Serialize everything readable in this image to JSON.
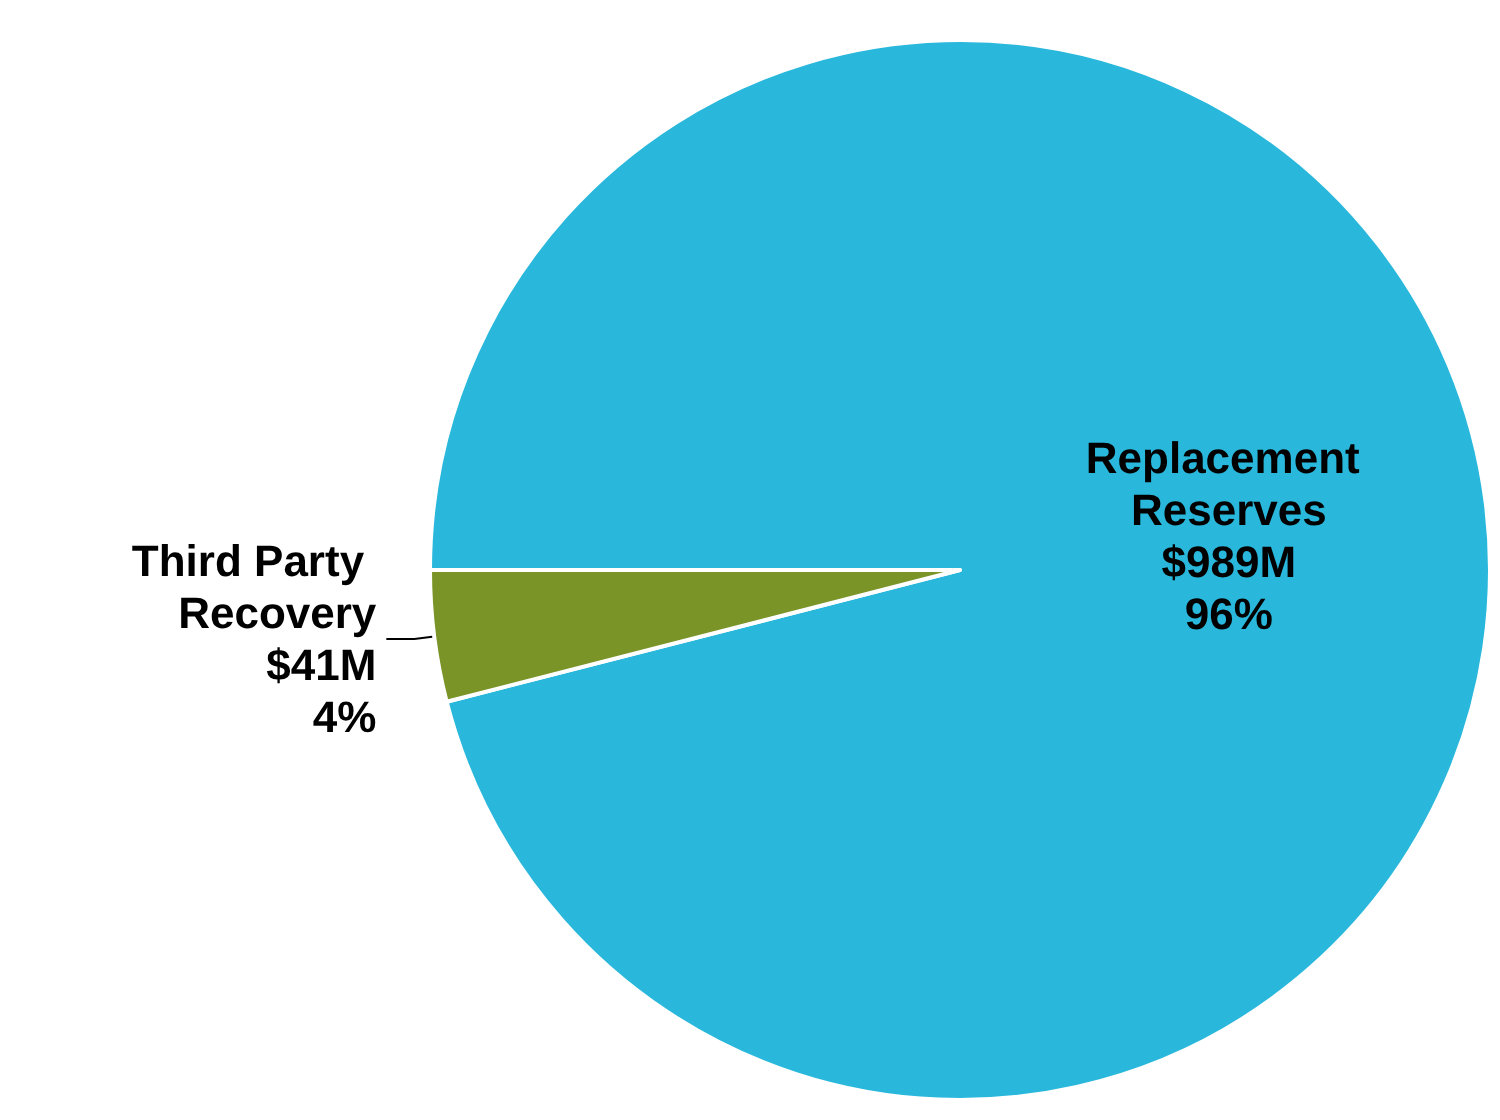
{
  "chart_data": {
    "type": "pie",
    "categories": [
      "Replacement Reserves",
      "Third Party Recovery"
    ],
    "values": [
      96,
      4
    ],
    "colors": [
      "#29b8dc",
      "#7a9428"
    ],
    "value_labels": [
      "$989M\n96%",
      "$41M\n4%"
    ],
    "legend": false
  }
}
